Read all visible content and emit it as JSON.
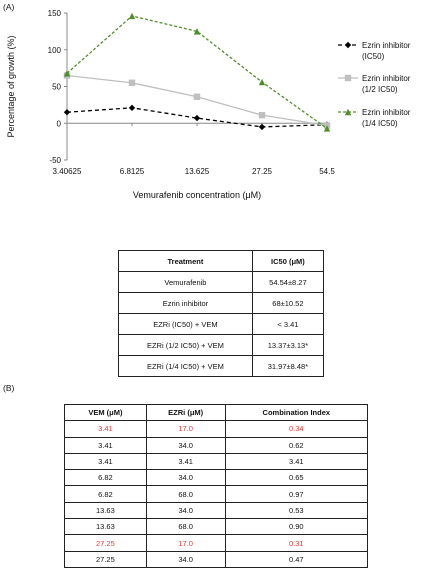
{
  "panel_a_label": "(A)",
  "panel_b_label": "(B)",
  "chart_data": {
    "type": "line",
    "title": "",
    "xlabel": "Vemurafenib concentration (μM)",
    "ylabel": "Percentage of growth (%)",
    "categories": [
      "3.40625",
      "6.8125",
      "13.625",
      "27.25",
      "54.5"
    ],
    "ylim": [
      -50,
      150
    ],
    "yticks": [
      -50,
      0,
      50,
      100,
      150
    ],
    "grid": false,
    "legend": "right",
    "series": [
      {
        "name": "Ezrin inhibitor (IC50)",
        "legend_lines": [
          "Ezrin inhibitor",
          "(IC50)"
        ],
        "values": [
          15,
          21,
          7,
          -5,
          -2
        ],
        "color": "#000000",
        "dash": "4,3",
        "marker": "diamond"
      },
      {
        "name": "Ezrin inhibitor (1/2 IC50)",
        "legend_lines": [
          "Ezrin inhibitor",
          "(1/2 IC50)"
        ],
        "values": [
          65,
          55,
          36,
          11,
          -3
        ],
        "color": "#bfbfbf",
        "dash": "",
        "marker": "square"
      },
      {
        "name": "Ezrin inhibitor (1/4 IC50)",
        "legend_lines": [
          "Ezrin inhibitor",
          "(1/4 IC50)"
        ],
        "values": [
          68,
          146,
          125,
          56,
          -7
        ],
        "color": "#4e8f2b",
        "dash": "3,2",
        "marker": "triangle"
      }
    ]
  },
  "table_ic50": {
    "headers": [
      "Treatment",
      "IC50 (μM)"
    ],
    "rows": [
      [
        "Vemurafenib",
        "54.54±8.27"
      ],
      [
        "Ezrin inhibitor",
        "68±10.52"
      ],
      [
        "EZRi (IC50) + VEM",
        "< 3.41"
      ],
      [
        "EZRi (1/2 IC50) + VEM",
        "13.37±3.13*"
      ],
      [
        "EZRi (1/4 IC50) + VEM",
        "31.97±8.48*"
      ]
    ]
  },
  "table_ci": {
    "headers": [
      "VEM (μM)",
      "EZRi (μM)",
      "Combination Index"
    ],
    "rows": [
      {
        "cells": [
          "3.41",
          "17.0",
          "0.34"
        ],
        "highlight": true
      },
      {
        "cells": [
          "3.41",
          "34.0",
          "0.62"
        ],
        "highlight": false
      },
      {
        "cells": [
          "3.41",
          "3.41",
          "3.41"
        ],
        "highlight": false
      },
      {
        "cells": [
          "6.82",
          "34.0",
          "0.65"
        ],
        "highlight": false
      },
      {
        "cells": [
          "6.82",
          "68.0",
          "0.97"
        ],
        "highlight": false
      },
      {
        "cells": [
          "13.63",
          "34.0",
          "0.53"
        ],
        "highlight": false
      },
      {
        "cells": [
          "13.63",
          "68.0",
          "0.90"
        ],
        "highlight": false
      },
      {
        "cells": [
          "27.25",
          "17.0",
          "0.31"
        ],
        "highlight": true
      },
      {
        "cells": [
          "27.25",
          "34.0",
          "0.47"
        ],
        "highlight": false
      }
    ]
  }
}
